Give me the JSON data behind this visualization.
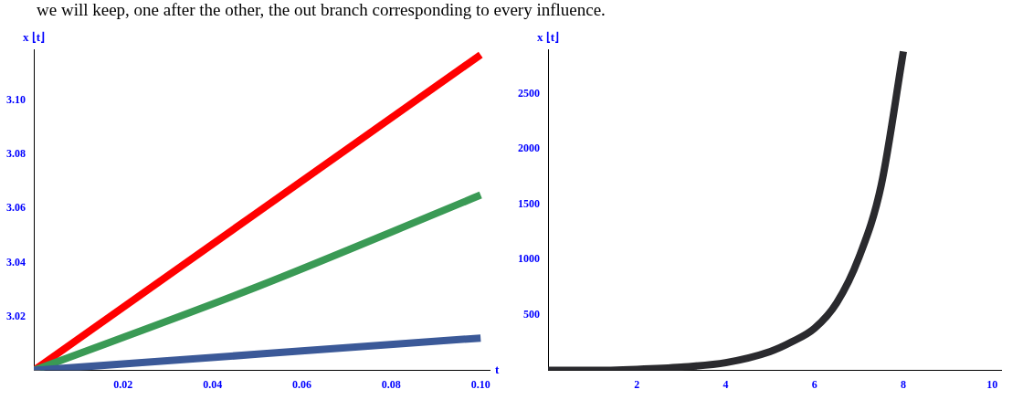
{
  "chart_data": [
    {
      "type": "line",
      "ylabel": "x ⌊t⌋",
      "xlabel": "t",
      "annotations": [
        "we will keep, one after the other, the out branch corresponding to every influence."
      ],
      "xlim": [
        0,
        0.102
      ],
      "xticks": [
        0.02,
        0.04,
        0.06,
        0.08,
        {
          "value": 0.1,
          "label": "0.10"
        }
      ],
      "ylim": [
        3.0,
        3.119
      ],
      "yticks": [
        3.02,
        3.04,
        3.06,
        3.08,
        {
          "value": 3.1,
          "label": "3.10"
        }
      ],
      "grid": false,
      "legend": false,
      "marker": "none",
      "series": [
        {
          "color": "#ff0000",
          "x": [
            0,
            0.1
          ],
          "values": [
            3.0,
            3.117
          ]
        },
        {
          "color": "#3a9a55",
          "x": [
            0,
            0.05,
            0.1
          ],
          "values": [
            3.0,
            3.031,
            3.065
          ]
        },
        {
          "color": "#3b5998",
          "x": [
            0,
            0.1
          ],
          "values": [
            3.0,
            3.012
          ]
        }
      ]
    },
    {
      "type": "line",
      "ylabel": "x ⌊t⌋",
      "xlim": [
        0,
        10.2
      ],
      "xticks": [
        2,
        4,
        6,
        8,
        10
      ],
      "ylim": [
        0,
        2900
      ],
      "yticks": [
        500,
        1000,
        1500,
        2000,
        2500
      ],
      "grid": false,
      "legend": false,
      "marker": "none",
      "series": [
        {
          "color": "#2a2a2e",
          "x": [
            0,
            1,
            2,
            3,
            4,
            5,
            5.5,
            6,
            6.5,
            7,
            7.5,
            8
          ],
          "values": [
            0,
            0,
            10,
            30,
            70,
            170,
            260,
            380,
            610,
            1020,
            1670,
            2880
          ]
        }
      ]
    }
  ]
}
